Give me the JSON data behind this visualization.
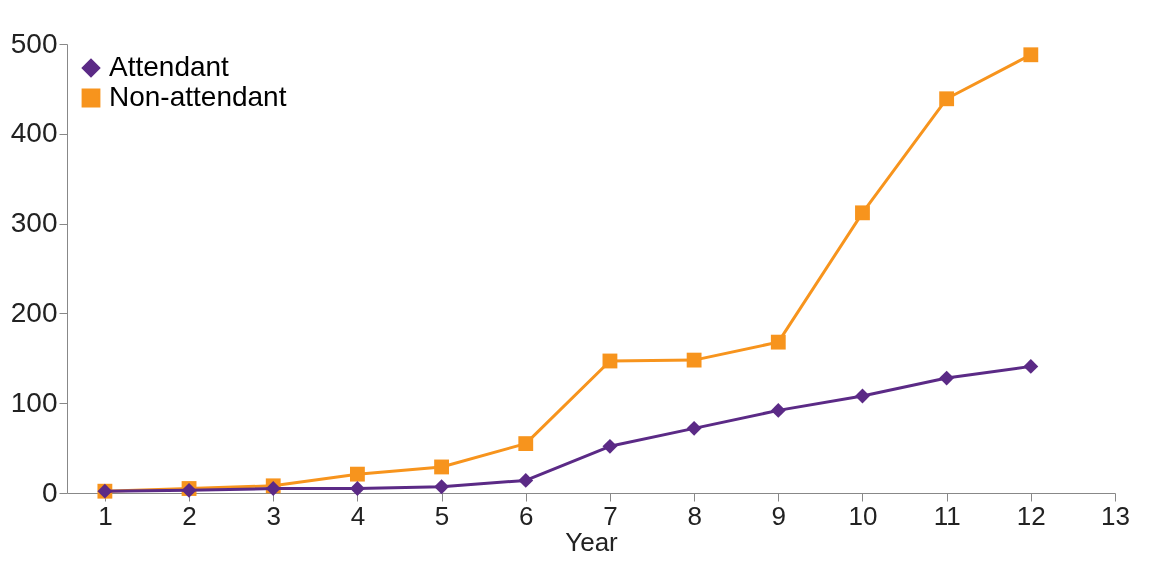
{
  "chart_data": {
    "type": "line",
    "xlabel": "Year",
    "x": [
      1,
      2,
      3,
      4,
      5,
      6,
      7,
      8,
      9,
      10,
      11,
      12
    ],
    "series": [
      {
        "name": "Attendant",
        "color": "#5b2a86",
        "marker": "diamond",
        "values": [
          2,
          3,
          5,
          5,
          7,
          14,
          52,
          72,
          92,
          108,
          128,
          141
        ]
      },
      {
        "name": "Non-attendant",
        "color": "#f7941d",
        "marker": "square",
        "values": [
          2,
          5,
          8,
          21,
          29,
          55,
          147,
          148,
          168,
          312,
          439,
          488
        ]
      }
    ],
    "xlim": [
      0.55,
      13
    ],
    "xticks": [
      1,
      2,
      3,
      4,
      5,
      6,
      7,
      8,
      9,
      10,
      11,
      12,
      13
    ],
    "ylim": [
      0,
      500
    ],
    "yticks": [
      0,
      100,
      200,
      300,
      400,
      500
    ],
    "grid": false,
    "legend": "top left",
    "line_style": "solid"
  }
}
